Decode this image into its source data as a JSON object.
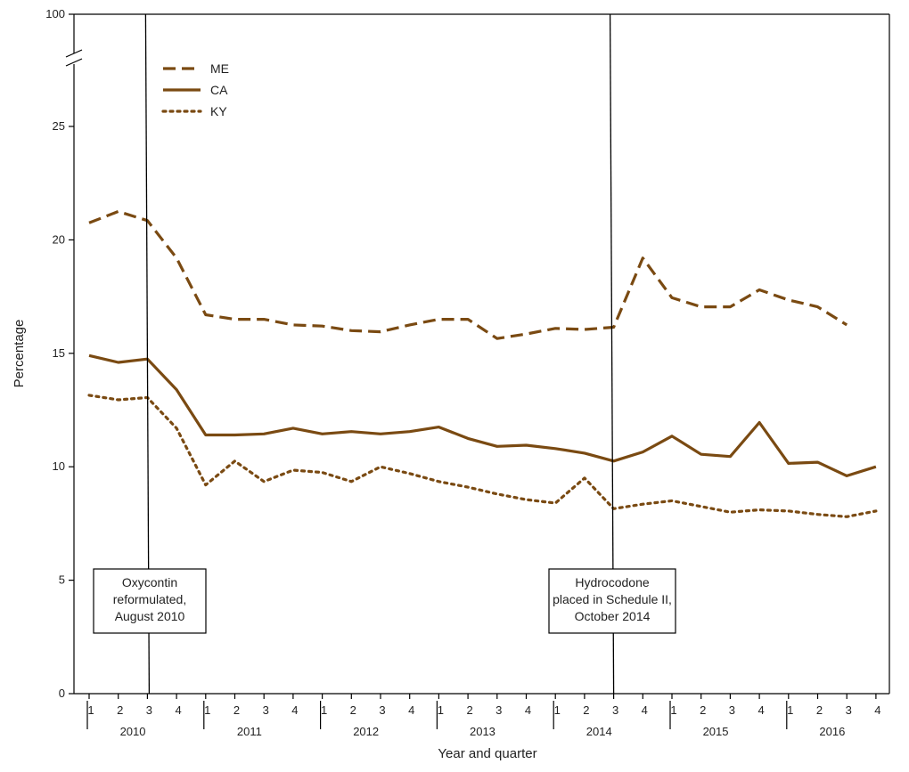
{
  "chart_data": {
    "type": "line",
    "xlabel": "Year and quarter",
    "ylabel": "Percentage",
    "y_ticks": [
      0,
      5,
      10,
      15,
      20,
      25,
      100
    ],
    "y_break_between": [
      25,
      100
    ],
    "years": [
      "2010",
      "2011",
      "2012",
      "2013",
      "2014",
      "2015",
      "2016"
    ],
    "quarter_labels": [
      "1",
      "2",
      "3",
      "4",
      "1",
      "2",
      "3",
      "4",
      "1",
      "2",
      "3",
      "4",
      "1",
      "2",
      "3",
      "4",
      "1",
      "2",
      "3",
      "4",
      "1",
      "2",
      "3",
      "4",
      "1",
      "2",
      "3",
      "4"
    ],
    "series": [
      {
        "name": "ME",
        "style": "dashed",
        "color": "#7a4a12",
        "values": [
          20.75,
          21.25,
          20.85,
          19.2,
          16.7,
          16.5,
          16.5,
          16.25,
          16.2,
          16.0,
          15.95,
          16.25,
          16.5,
          16.5,
          15.65,
          15.85,
          16.1,
          16.05,
          16.15,
          19.2,
          17.45,
          17.05,
          17.05,
          17.8,
          17.35,
          17.05,
          16.25,
          null
        ]
      },
      {
        "name": "CA",
        "style": "solid",
        "color": "#7a4a12",
        "values": [
          14.9,
          14.6,
          14.75,
          13.4,
          11.4,
          11.4,
          11.45,
          11.7,
          11.45,
          11.55,
          11.45,
          11.55,
          11.75,
          11.25,
          10.9,
          10.95,
          10.8,
          10.6,
          10.25,
          10.65,
          11.35,
          10.55,
          10.45,
          11.95,
          10.15,
          10.2,
          9.6,
          10.0
        ]
      },
      {
        "name": "KY",
        "style": "dotted",
        "color": "#7a4a12",
        "values": [
          13.15,
          12.95,
          13.05,
          11.7,
          9.2,
          10.25,
          9.35,
          9.85,
          9.75,
          9.35,
          10.0,
          9.7,
          9.35,
          9.1,
          8.8,
          8.55,
          8.4,
          9.5,
          8.15,
          8.35,
          8.5,
          8.25,
          8.0,
          8.1,
          8.05,
          7.9,
          7.8,
          8.05
        ]
      }
    ],
    "annotations": [
      {
        "at_index": 2,
        "lines": [
          "Oxycontin",
          "reformulated,",
          "August 2010"
        ]
      },
      {
        "at_index": 18,
        "lines": [
          "Hydrocodone",
          "placed in Schedule II,",
          "October 2014"
        ]
      }
    ],
    "legend_position": "top-left"
  }
}
